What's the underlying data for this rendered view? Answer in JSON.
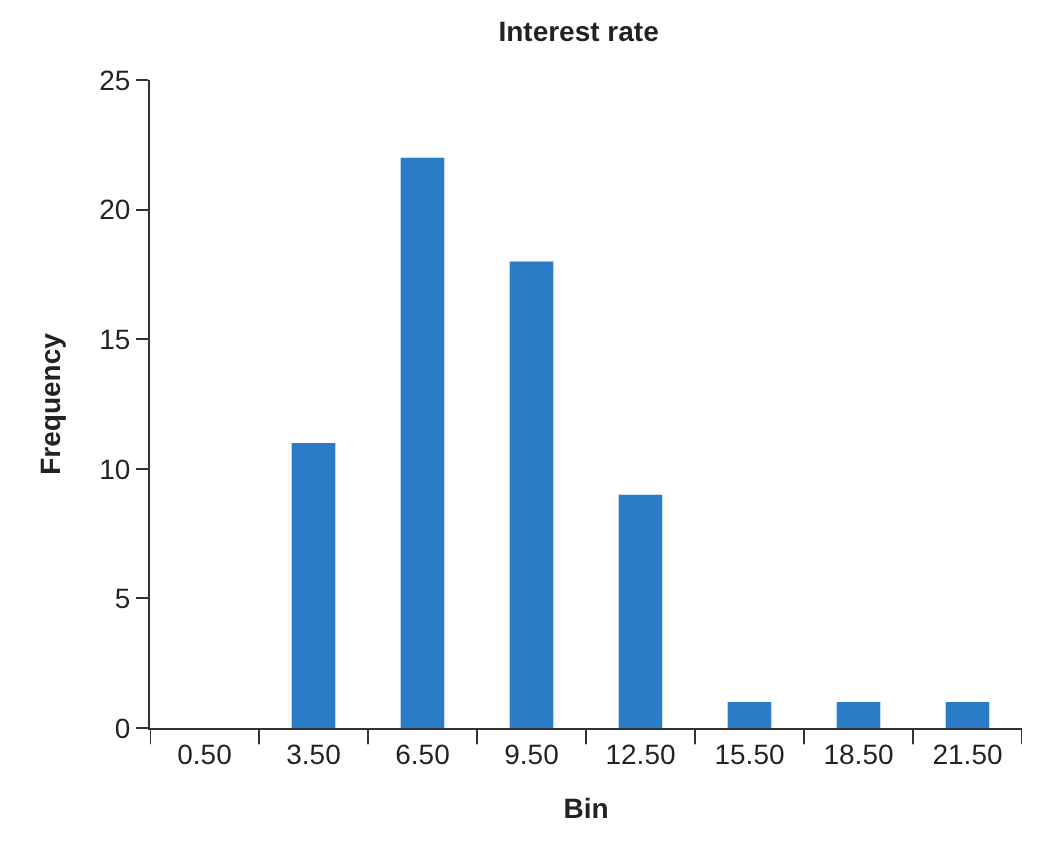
{
  "chart_data": {
    "type": "bar",
    "title": "Interest rate",
    "xlabel": "Bin",
    "ylabel": "Frequency",
    "categories": [
      "0.50",
      "3.50",
      "6.50",
      "9.50",
      "12.50",
      "15.50",
      "18.50",
      "21.50"
    ],
    "values": [
      0,
      11,
      22,
      18,
      9,
      1,
      1,
      1
    ],
    "color": "#2a7cc7",
    "ylim": [
      0,
      25
    ],
    "yticks": [
      0,
      5,
      10,
      15,
      20,
      25
    ]
  }
}
